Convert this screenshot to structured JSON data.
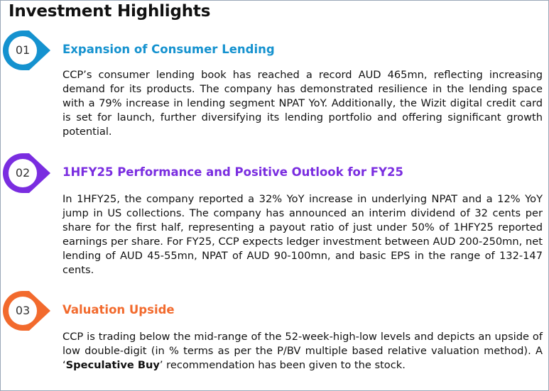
{
  "title": "Investment Highlights",
  "colors": {
    "blue": "#1592cf",
    "purple": "#7a2de0",
    "orange": "#f26a2d",
    "frame": "#9aa7b8"
  },
  "sections": [
    {
      "number": "01",
      "heading": "Expansion of Consumer Lending",
      "body": "CCP’s consumer lending book has reached a record AUD 465mn, reflecting increasing demand for its products. The company has demonstrated resilience in the lending space with a 79% increase in lending segment NPAT YoY. Additionally, the Wizit digital credit card is set for launch, further diversifying its lending portfolio and offering significant growth potential."
    },
    {
      "number": "02",
      "heading": "1HFY25 Performance and Positive Outlook for FY25",
      "body": "In 1HFY25, the company reported a 32% YoY increase in underlying NPAT and a 12% YoY jump in US collections. The company has announced an interim dividend of 32 cents per share for the first half, representing a payout ratio of just under 50% of 1HFY25 reported earnings per share. For FY25, CCP expects ledger investment between AUD 200-250mn, net lending of AUD 45-55mn, NPAT of AUD 90-100mn, and basic EPS in the range of 132-147 cents."
    },
    {
      "number": "03",
      "heading": "Valuation Upside",
      "body_before": "CCP is trading below the mid-range of the 52-week-high-low levels and depicts an upside of low double-digit (in % terms as per the P/BV multiple based relative valuation method). A ‘",
      "body_bold": "Speculative Buy",
      "body_after": "’ recommendation has been given to the stock."
    }
  ]
}
